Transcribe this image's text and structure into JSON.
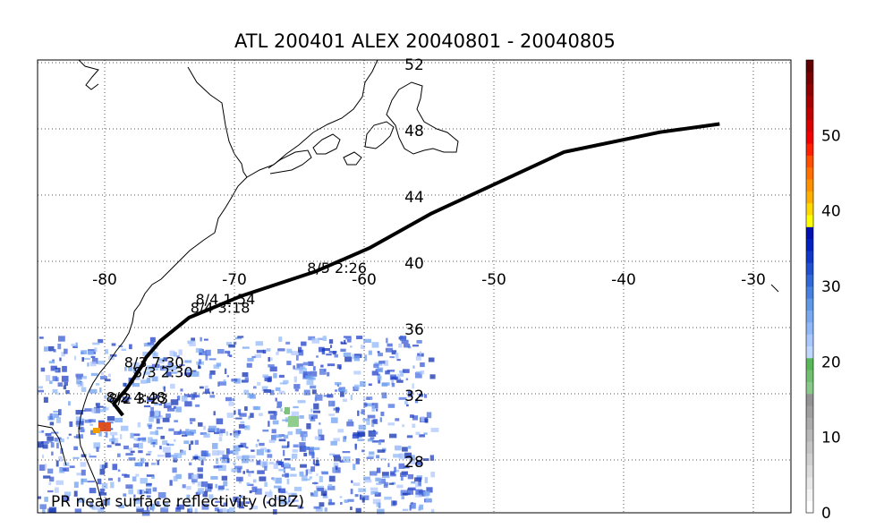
{
  "title": "ATL 200401 ALEX 20040801 - 20040805",
  "footer_note": "PR near surface reflectivity (dBZ)",
  "map": {
    "lon_ticks": [
      "-80",
      "-70",
      "-60",
      "-50",
      "-40",
      "-30"
    ],
    "lat_ticks": [
      "52",
      "48",
      "44",
      "40",
      "36",
      "32",
      "28"
    ],
    "grid": true
  },
  "track": {
    "color": "#000000",
    "points": [
      {
        "lon": -78.6,
        "lat": 30.7
      },
      {
        "lon": -79.3,
        "lat": 31.4
      },
      {
        "lon": -78.3,
        "lat": 32.3
      },
      {
        "lon": -77.2,
        "lat": 33.6
      },
      {
        "lon": -76.8,
        "lat": 34.2
      },
      {
        "lon": -75.7,
        "lat": 35.2
      },
      {
        "lon": -73.5,
        "lat": 36.6
      },
      {
        "lon": -69.5,
        "lat": 37.9
      },
      {
        "lon": -63.7,
        "lat": 39.4
      },
      {
        "lon": -59.6,
        "lat": 40.8
      },
      {
        "lon": -54.8,
        "lat": 42.9
      },
      {
        "lon": -44.6,
        "lat": 46.6
      },
      {
        "lon": -37.2,
        "lat": 47.8
      },
      {
        "lon": -32.6,
        "lat": 48.3
      }
    ],
    "labels": [
      {
        "text": "8/5 2:26",
        "lon": -64.4,
        "lat": 39.3
      },
      {
        "text": "8/4 1:54",
        "lon": -73.0,
        "lat": 37.4
      },
      {
        "text": "8/4 3:18",
        "lon": -73.4,
        "lat": 36.9
      },
      {
        "text": "8/3 7:30",
        "lon": -78.5,
        "lat": 33.6
      },
      {
        "text": "8/3 2:30",
        "lon": -77.8,
        "lat": 33.0
      },
      {
        "text": "8/2 4:48",
        "lon": -79.9,
        "lat": 31.5
      },
      {
        "text": "8/2 3:23",
        "lon": -79.7,
        "lat": 31.4
      }
    ]
  },
  "colorbar": {
    "tick_labels": [
      "0",
      "10",
      "20",
      "30",
      "40",
      "50"
    ],
    "min": 0,
    "max": 60,
    "colors": [
      "#ffffff",
      "#f4f4f4",
      "#e8e8e8",
      "#dcdcdc",
      "#d0d0d0",
      "#c4c4c4",
      "#b8b8b8",
      "#acacac",
      "#a0a0a0",
      "#949494",
      "#88c888",
      "#70c070",
      "#58b858",
      "#c0d8ff",
      "#a8c8ff",
      "#90b8f8",
      "#78a8f0",
      "#6098e8",
      "#4880e0",
      "#3068d8",
      "#2050d0",
      "#1038c8",
      "#0020c0",
      "#0010b0",
      "#ffff00",
      "#ffd800",
      "#ffb000",
      "#ff9000",
      "#ff7000",
      "#ff5000",
      "#ff2000",
      "#f00000",
      "#d80000",
      "#c00000",
      "#a80000",
      "#900000",
      "#780000",
      "#600000"
    ]
  }
}
